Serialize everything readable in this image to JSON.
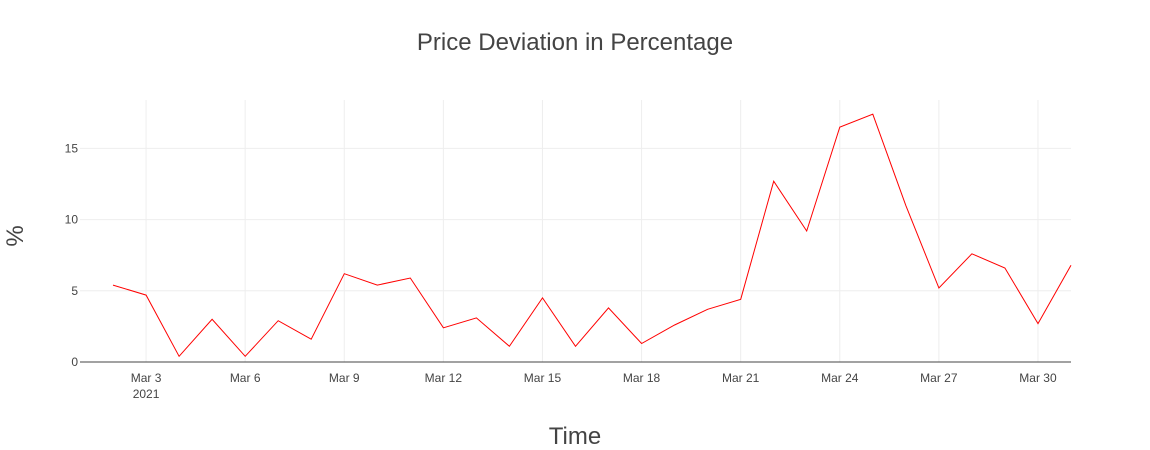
{
  "chart_data": {
    "type": "line",
    "title": "Price Deviation in Percentage",
    "xlabel": "Time",
    "ylabel": "%",
    "x_axis": {
      "type": "date",
      "range": [
        "2021-03-01",
        "2021-03-31"
      ],
      "ticks": [
        {
          "date": "2021-03-03",
          "label": "Mar 3",
          "sublabel": "2021"
        },
        {
          "date": "2021-03-06",
          "label": "Mar 6"
        },
        {
          "date": "2021-03-09",
          "label": "Mar 9"
        },
        {
          "date": "2021-03-12",
          "label": "Mar 12"
        },
        {
          "date": "2021-03-15",
          "label": "Mar 15"
        },
        {
          "date": "2021-03-18",
          "label": "Mar 18"
        },
        {
          "date": "2021-03-21",
          "label": "Mar 21"
        },
        {
          "date": "2021-03-24",
          "label": "Mar 24"
        },
        {
          "date": "2021-03-27",
          "label": "Mar 27"
        },
        {
          "date": "2021-03-30",
          "label": "Mar 30"
        }
      ]
    },
    "y_axis": {
      "range": [
        0,
        18.4
      ],
      "ticks": [
        0,
        5,
        10,
        15
      ],
      "tick_labels": [
        "0",
        "5",
        "10",
        "15"
      ]
    },
    "grid": true,
    "series": [
      {
        "color": "#ff0000",
        "x": [
          "2021-03-02",
          "2021-03-03",
          "2021-03-04",
          "2021-03-05",
          "2021-03-06",
          "2021-03-07",
          "2021-03-08",
          "2021-03-09",
          "2021-03-10",
          "2021-03-11",
          "2021-03-12",
          "2021-03-13",
          "2021-03-14",
          "2021-03-15",
          "2021-03-16",
          "2021-03-17",
          "2021-03-18",
          "2021-03-19",
          "2021-03-20",
          "2021-03-21",
          "2021-03-22",
          "2021-03-23",
          "2021-03-24",
          "2021-03-25",
          "2021-03-26",
          "2021-03-27",
          "2021-03-28",
          "2021-03-29",
          "2021-03-30",
          "2021-03-31"
        ],
        "y": [
          5.4,
          4.7,
          0.4,
          3.0,
          0.4,
          2.9,
          1.6,
          6.2,
          5.4,
          5.9,
          2.4,
          3.1,
          1.1,
          4.5,
          1.1,
          3.8,
          1.3,
          2.6,
          3.7,
          4.4,
          12.7,
          9.2,
          16.5,
          17.4,
          11.0,
          5.2,
          7.6,
          6.6,
          2.7,
          6.8
        ]
      }
    ]
  }
}
